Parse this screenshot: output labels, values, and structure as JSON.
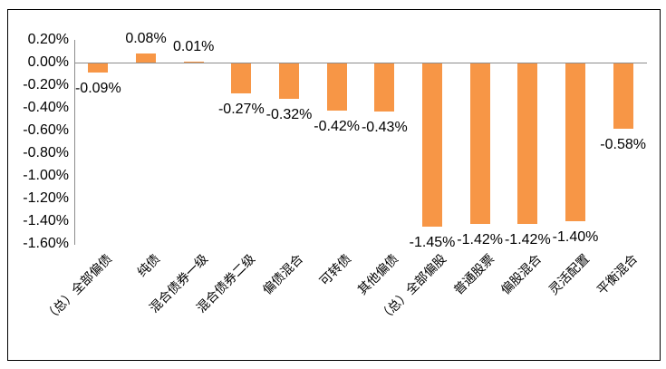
{
  "chart_data": {
    "type": "bar",
    "title": "",
    "xlabel": "",
    "ylabel": "",
    "categories": [
      "（总）全部偏债",
      "纯债",
      "混合债券一级",
      "混合债券二级",
      "偏债混合",
      "可转债",
      "其他偏债",
      "（总）全部偏股",
      "普通股票",
      "偏股混合",
      "灵活配置",
      "平衡混合"
    ],
    "values": [
      -0.09,
      0.08,
      0.01,
      -0.27,
      -0.32,
      -0.42,
      -0.43,
      -1.45,
      -1.42,
      -1.42,
      -1.4,
      -0.58
    ],
    "data_labels": [
      "-0.09%",
      "0.08%",
      "0.01%",
      "-0.27%",
      "-0.32%",
      "-0.42%",
      "-0.43%",
      "-1.45%",
      "-1.42%",
      "-1.42%",
      "-1.40%",
      "-0.58%"
    ],
    "ytick_labels": [
      "0.20%",
      "0.00%",
      "-0.20%",
      "-0.40%",
      "-0.60%",
      "-0.80%",
      "-1.00%",
      "-1.20%",
      "-1.40%",
      "-1.60%"
    ],
    "ylim": [
      -1.6,
      0.2
    ],
    "ytick_step": 0.2,
    "grid": false,
    "legend": "none",
    "bar_color": "#F79646",
    "axis_color": "#8C8C8C",
    "border_color": "#000000",
    "background_color": "#FFFFFF"
  }
}
